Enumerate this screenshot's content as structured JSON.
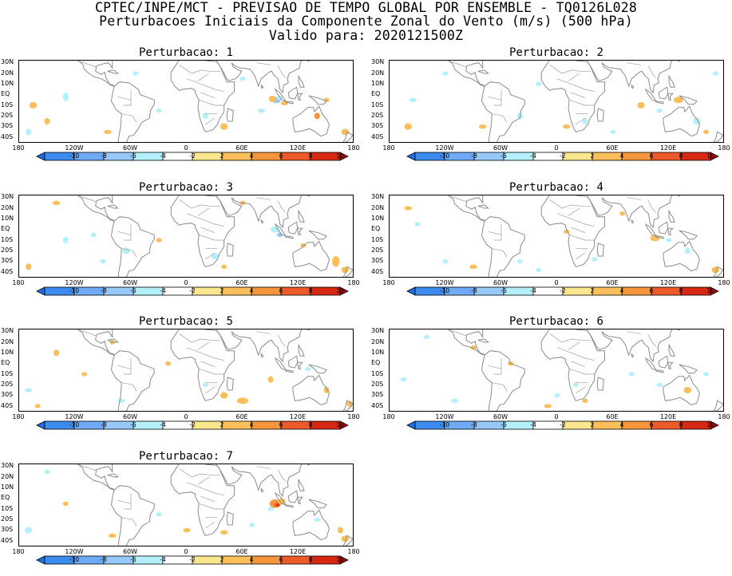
{
  "title": {
    "line1": "CPTEC/INPE/MCT - PREVISAO DE TEMPO GLOBAL POR ENSEMBLE - TQ0126L028",
    "line2": "Perturbacoes Iniciais da Componente Zonal do Vento (m/s) (500 hPa)",
    "line3": "Valido para: 2020121500Z"
  },
  "lat_labels": [
    "30N",
    "20N",
    "10N",
    "EQ",
    "10S",
    "20S",
    "30S",
    "40S"
  ],
  "lon_labels": [
    "180",
    "120W",
    "60W",
    "0",
    "60E",
    "120E",
    "180"
  ],
  "colorbar": {
    "labels": [
      "-10",
      "-8",
      "-6",
      "-4",
      "-2",
      "2",
      "4",
      "6",
      "8",
      "10"
    ],
    "colors": [
      "#1e6ee6",
      "#3c8cf0",
      "#6eaaf5",
      "#96c8fa",
      "#b4f0fa",
      "#ffffff",
      "#fae68c",
      "#fabe5a",
      "#f5963c",
      "#eb5a28",
      "#d72814",
      "#a01408"
    ]
  },
  "panels": [
    {
      "label": "Perturbacao: 1"
    },
    {
      "label": "Perturbacao: 2"
    },
    {
      "label": "Perturbacao: 3"
    },
    {
      "label": "Perturbacao: 4"
    },
    {
      "label": "Perturbacao: 5"
    },
    {
      "label": "Perturbacao: 6"
    },
    {
      "label": "Perturbacao: 7"
    }
  ]
}
